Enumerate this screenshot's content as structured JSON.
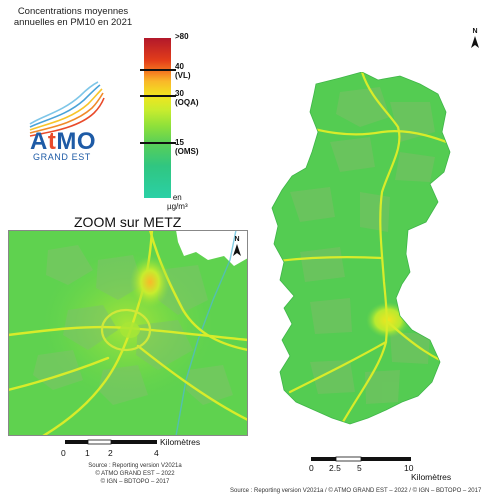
{
  "header": {
    "title_line1": "Concentrations moyennes",
    "title_line2": "annuelles en PM10 en 2021"
  },
  "legend": {
    "label_80": ">80",
    "label_40_value": "40",
    "label_40_name": "(VL)",
    "label_30_value": "30",
    "label_30_name": "(OQA)",
    "label_15_value": "15",
    "label_15_name": "(OMS)",
    "unit_line1": "en",
    "unit_line2": "µg/m³",
    "colors": [
      "#b2182b",
      "#f47820",
      "#f1e51f",
      "#8ee13a",
      "#2ad0a6"
    ]
  },
  "logo": {
    "name_a": "A",
    "name_t": "t",
    "name_mo": "MO",
    "subtitle": "GRAND EST"
  },
  "zoom_map": {
    "title": "ZOOM sur METZ",
    "north": "N"
  },
  "main_map": {
    "north": "N"
  },
  "scale_zoom": {
    "ticks": [
      "0",
      "1",
      "2",
      "4"
    ],
    "unit": "Kilomètres"
  },
  "scale_main": {
    "ticks": [
      "0",
      "2.5",
      "5",
      "10"
    ],
    "unit": "Kilomètres"
  },
  "sources": {
    "small_line1": "Source : Reporting version V2021a",
    "small_line2": "© ATMO GRAND EST – 2022",
    "small_line3": "© IGN – BDTOPO – 2017",
    "bottom": "Source : Reporting version V2021a / © ATMO GRAND EST – 2022 / © IGN – BDTOPO – 2017"
  }
}
